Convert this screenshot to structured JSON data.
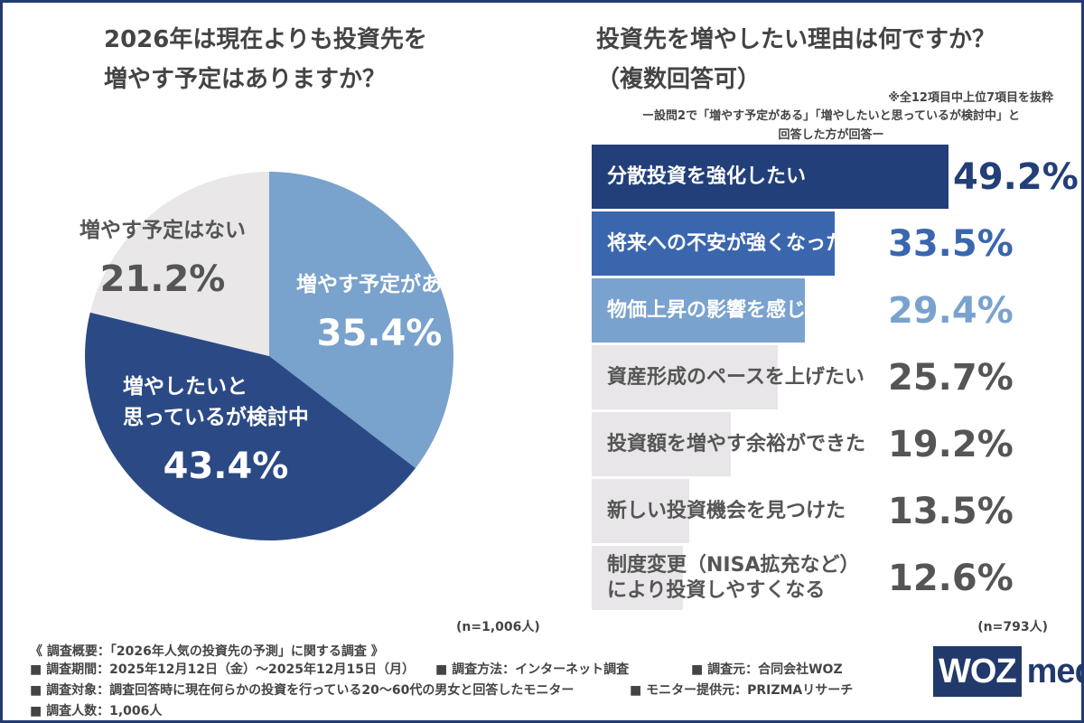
{
  "pie_title": [
    "2026年は現在よりも投資先を",
    "増やす予定はありますか？"
  ],
  "bar_title": [
    "投資先を増やしたい理由は何ですか？",
    "（複数回答可）"
  ],
  "bar_note": "※全12項目中上位7項目を抜粋",
  "bar_subnote": [
    "ー設問2で「増やす予定がある」「増やしたいと思っているが検討中」と",
    "回答した方が回答ー"
  ],
  "n_left": "(n=1,006人)",
  "n_right": "(n=793人)",
  "survey": {
    "header": "《 調査概要：「2026年人気の投資先の予測」に関する調査 》",
    "period": "■ 調査期間：2025年12月12日（金）〜2025年12月15日（月）",
    "method": "■ 調査方法：インターネット調査",
    "source": "■ 調査元：合同会社WOZ",
    "target": "■ 調査対象：調査回答時に現在何らかの投資を行っている20〜60代の男女と回答したモニター",
    "provider": "■ モニター提供元：PRIZMAリサーチ",
    "count": "■ 調査人数：1,006人"
  },
  "logo": {
    "box": "WOZ",
    "text": "media"
  },
  "chart_data": [
    {
      "type": "pie",
      "slices": [
        {
          "label": [
            "増やす予定がある"
          ],
          "value": 35.4,
          "display": "35.4%",
          "color": "#79a2cc"
        },
        {
          "label": [
            "増やしたいと",
            "思っているが検討中"
          ],
          "value": 43.4,
          "display": "43.4%",
          "color": "#2b4a85"
        },
        {
          "label": [
            "増やす予定はない"
          ],
          "value": 21.2,
          "display": "21.2%",
          "color": "#e9e7e8"
        }
      ],
      "start_angle_deg": 0,
      "direction": "clockwise"
    },
    {
      "type": "bar",
      "orientation": "horizontal",
      "categories": [
        [
          "分散投資を強化したい"
        ],
        [
          "将来への不安が強くなった"
        ],
        [
          "物価上昇の影響を感じた"
        ],
        [
          "資産形成のペースを上げたい"
        ],
        [
          "投資額を増やす余裕ができた"
        ],
        [
          "新しい投資機会を見つけた"
        ],
        [
          "制度変更（NISA拡充など）",
          "により投資しやすくなる"
        ]
      ],
      "values": [
        49.2,
        33.5,
        29.4,
        25.7,
        19.2,
        13.5,
        12.6
      ],
      "value_labels": [
        "49.2%",
        "33.5%",
        "29.4%",
        "25.7%",
        "19.2%",
        "13.5%",
        "12.6%"
      ],
      "colors": [
        "#233f79",
        "#3a66ad",
        "#7aa2cf",
        "#e8e6e8",
        "#e8e6e8",
        "#e8e6e8",
        "#e8e6e8"
      ],
      "label_colors": [
        "#ffffff",
        "#ffffff",
        "#ffffff",
        "#555555",
        "#555555",
        "#555555",
        "#555555"
      ],
      "value_colors": [
        "#233f79",
        "#3a66ad",
        "#7aa2cf",
        "#555555",
        "#555555",
        "#555555",
        "#555555"
      ]
    }
  ]
}
